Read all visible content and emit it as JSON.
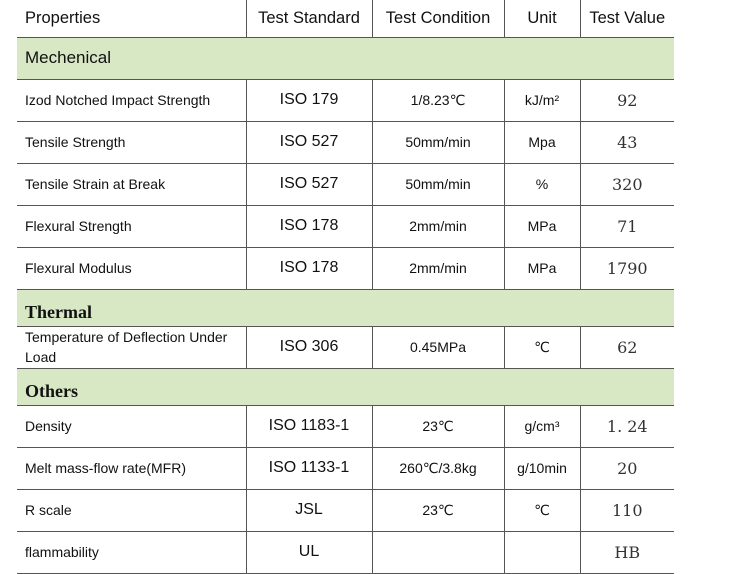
{
  "headers": [
    "Properties",
    "Test Standard",
    "Test Condition",
    "Unit",
    "Test Value"
  ],
  "sections": [
    {
      "title": "Mechenical",
      "rows": [
        {
          "property": "Izod Notched Impact Strength",
          "standard": "ISO 179",
          "condition": "1/8.23℃",
          "unit": "kJ/m²",
          "value": "92"
        },
        {
          "property": "Tensile Strength",
          "standard": "ISO 527",
          "condition": "50mm/min",
          "unit": "Mpa",
          "value": "43"
        },
        {
          "property": "Tensile Strain at Break",
          "standard": "ISO 527",
          "condition": "50mm/min",
          "unit": "%",
          "value": "320"
        },
        {
          "property": "Flexural Strength",
          "standard": "ISO 178",
          "condition": "2mm/min",
          "unit": "MPa",
          "value": "71"
        },
        {
          "property": "Flexural Modulus",
          "standard": "ISO 178",
          "condition": "2mm/min",
          "unit": "MPa",
          "value": "1790"
        }
      ]
    },
    {
      "title": "Thermal",
      "rows": [
        {
          "property": "Temperature of Deflection Under Load",
          "standard": "ISO 306",
          "condition": "0.45MPa",
          "unit": "℃",
          "value": "62"
        }
      ]
    },
    {
      "title": "Others",
      "rows": [
        {
          "property": "Density",
          "standard": "ISO 1183-1",
          "condition": "23℃",
          "unit": "g/cm³",
          "value": "1. 24"
        },
        {
          "property": "Melt mass-flow rate(MFR)",
          "standard": "ISO 1133-1",
          "condition": "260℃/3.8kg",
          "unit": "g/10min",
          "value": "20"
        },
        {
          "property": "R scale",
          "standard": "JSL",
          "condition": "23℃",
          "unit": "℃",
          "value": "110"
        },
        {
          "property": "flammability",
          "standard": "UL",
          "condition": "",
          "unit": "",
          "value": "HB"
        }
      ]
    }
  ],
  "colors": {
    "section_bg": "#d8e8c5",
    "border": "#555555"
  }
}
